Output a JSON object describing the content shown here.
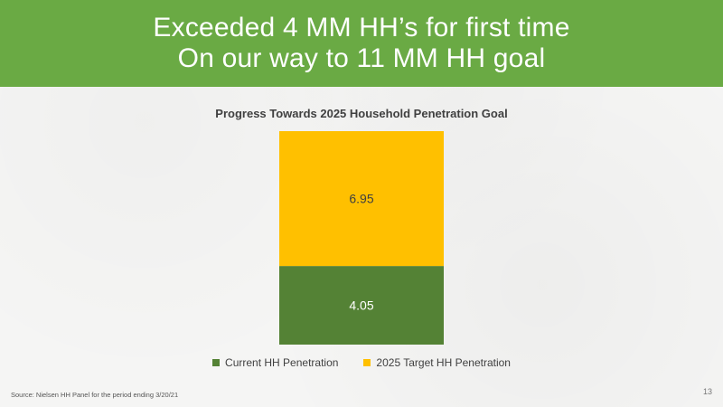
{
  "slide": {
    "title_line_1": "Exceeded 4 MM HH’s for first time",
    "title_line_2": "On our way to 11 MM HH goal",
    "source": "Source:  Nielsen HH Panel for the period ending 3/20/21",
    "page_number": "13"
  },
  "colors": {
    "header_background": "#6aaa44",
    "current_series": "#548235",
    "target_series": "#ffc000"
  },
  "chart_data": {
    "type": "bar",
    "stacked": true,
    "title": "Progress Towards 2025 Household Penetration Goal",
    "categories": [
      ""
    ],
    "series": [
      {
        "name": "Current HH Penetration",
        "values": [
          4.05
        ],
        "color": "#548235",
        "data_labels": [
          "4.05"
        ]
      },
      {
        "name": "2025 Target HH Penetration",
        "values": [
          6.95
        ],
        "color": "#ffc000",
        "data_labels": [
          "6.95"
        ]
      }
    ],
    "ylim": [
      0,
      11
    ],
    "grid": false,
    "legend": "bottom"
  }
}
